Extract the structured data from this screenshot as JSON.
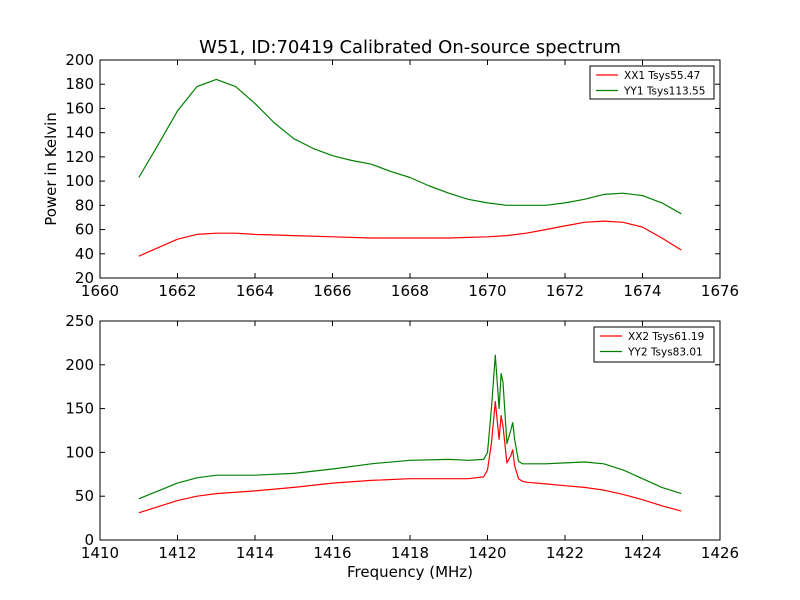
{
  "chart_data": [
    {
      "type": "line",
      "title": "W51, ID:70419 Calibrated On-source spectrum",
      "xlabel": "",
      "ylabel": "Power in Kelvin",
      "xlim": [
        1660,
        1676
      ],
      "ylim": [
        20,
        200
      ],
      "xticks": [
        1660,
        1662,
        1664,
        1666,
        1668,
        1670,
        1672,
        1674,
        1676
      ],
      "yticks": [
        20,
        40,
        60,
        80,
        100,
        120,
        140,
        160,
        180,
        200
      ],
      "legend_position": "top-right",
      "series": [
        {
          "name": "XX1 Tsys55.47",
          "color": "#ff0000",
          "x": [
            1661.0,
            1661.5,
            1662.0,
            1662.5,
            1663.0,
            1663.5,
            1664.0,
            1665.0,
            1666.0,
            1667.0,
            1668.0,
            1669.0,
            1670.0,
            1670.5,
            1671.0,
            1671.5,
            1672.0,
            1672.5,
            1673.0,
            1673.5,
            1674.0,
            1674.5,
            1675.0
          ],
          "y": [
            38,
            45,
            52,
            56,
            57,
            57,
            56,
            55,
            54,
            53,
            53,
            53,
            54,
            55,
            57,
            60,
            63,
            66,
            67,
            66,
            62,
            53,
            43
          ]
        },
        {
          "name": "YY1 Tsys113.55",
          "color": "#008000",
          "x": [
            1661.0,
            1661.5,
            1662.0,
            1662.5,
            1663.0,
            1663.5,
            1664.0,
            1664.5,
            1665.0,
            1665.5,
            1666.0,
            1666.5,
            1667.0,
            1667.5,
            1668.0,
            1668.5,
            1669.0,
            1669.5,
            1670.0,
            1670.5,
            1671.0,
            1671.5,
            1672.0,
            1672.5,
            1673.0,
            1673.5,
            1674.0,
            1674.5,
            1675.0
          ],
          "y": [
            103,
            130,
            158,
            178,
            184,
            178,
            164,
            148,
            135,
            127,
            121,
            117,
            114,
            108,
            103,
            96,
            90,
            85,
            82,
            80,
            80,
            80,
            82,
            85,
            89,
            90,
            88,
            82,
            73
          ]
        }
      ]
    },
    {
      "type": "line",
      "title": "",
      "xlabel": "Frequency (MHz)",
      "ylabel": "",
      "xlim": [
        1410,
        1426
      ],
      "ylim": [
        0,
        250
      ],
      "xticks": [
        1410,
        1412,
        1414,
        1416,
        1418,
        1420,
        1422,
        1424,
        1426
      ],
      "yticks": [
        0,
        50,
        100,
        150,
        200,
        250
      ],
      "legend_position": "top-right",
      "series": [
        {
          "name": "XX2 Tsys61.19",
          "color": "#ff0000",
          "x": [
            1411.0,
            1411.5,
            1412.0,
            1412.5,
            1413.0,
            1414.0,
            1415.0,
            1416.0,
            1417.0,
            1418.0,
            1419.0,
            1419.5,
            1419.9,
            1420.0,
            1420.1,
            1420.2,
            1420.3,
            1420.35,
            1420.4,
            1420.5,
            1420.6,
            1420.65,
            1420.7,
            1420.8,
            1420.9,
            1421.0,
            1421.5,
            1422.0,
            1422.5,
            1423.0,
            1423.5,
            1424.0,
            1424.5,
            1425.0
          ],
          "y": [
            31,
            38,
            45,
            50,
            53,
            56,
            60,
            65,
            68,
            70,
            70,
            70,
            72,
            80,
            110,
            158,
            115,
            142,
            130,
            88,
            96,
            103,
            85,
            70,
            67,
            66,
            64,
            62,
            60,
            57,
            52,
            46,
            39,
            33
          ]
        },
        {
          "name": "YY2 Tsys83.01",
          "color": "#008000",
          "x": [
            1411.0,
            1411.5,
            1412.0,
            1412.5,
            1413.0,
            1414.0,
            1415.0,
            1416.0,
            1417.0,
            1418.0,
            1419.0,
            1419.5,
            1419.9,
            1420.0,
            1420.1,
            1420.2,
            1420.3,
            1420.35,
            1420.4,
            1420.5,
            1420.6,
            1420.65,
            1420.7,
            1420.8,
            1420.9,
            1421.0,
            1421.5,
            1422.0,
            1422.5,
            1423.0,
            1423.5,
            1424.0,
            1424.5,
            1425.0
          ],
          "y": [
            47,
            56,
            65,
            71,
            74,
            74,
            76,
            81,
            87,
            91,
            92,
            91,
            92,
            100,
            150,
            211,
            150,
            190,
            180,
            110,
            125,
            134,
            115,
            90,
            87,
            87,
            87,
            88,
            89,
            87,
            80,
            70,
            60,
            53
          ]
        }
      ]
    }
  ]
}
